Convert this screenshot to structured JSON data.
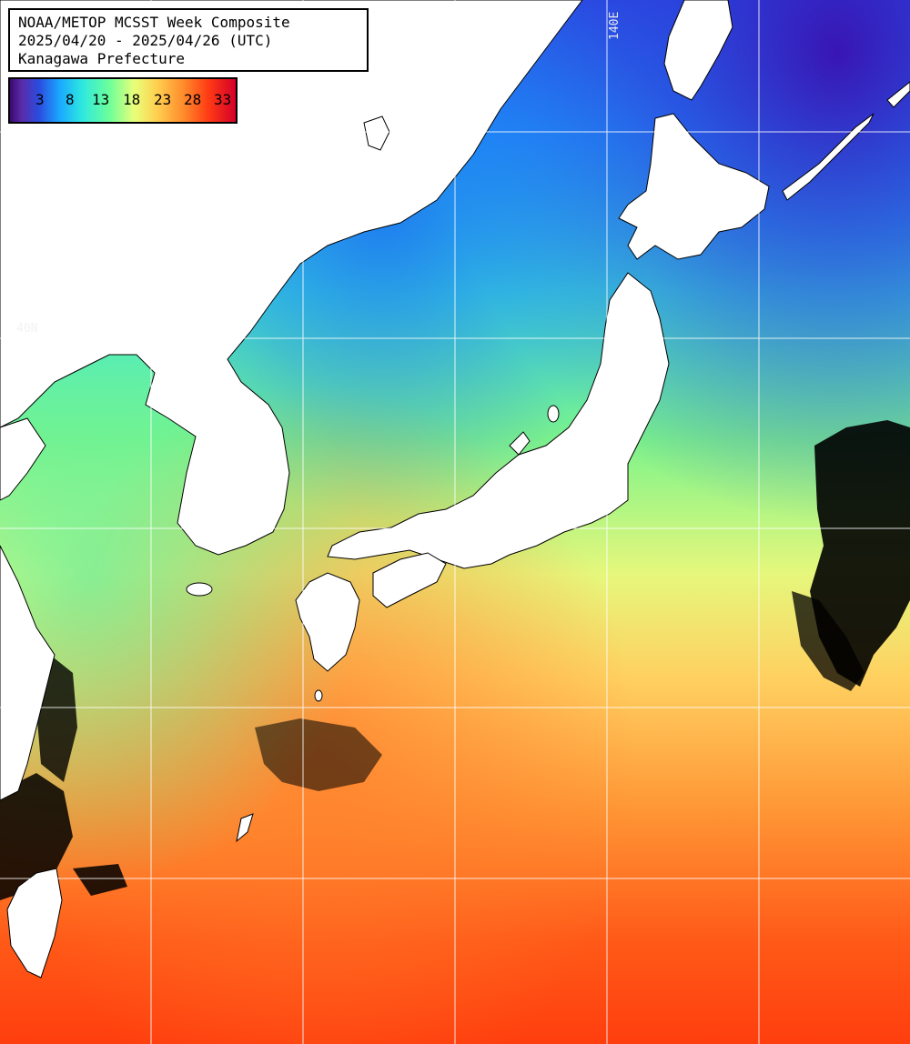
{
  "title": {
    "line1": "NOAA/METOP MCSST Week Composite",
    "line2": "2025/04/20 - 2025/04/26 (UTC)",
    "line3": "Kanagawa Prefecture"
  },
  "colorbar": {
    "ticks": [
      "3",
      "8",
      "13",
      "18",
      "23",
      "28",
      "33"
    ],
    "stops": [
      "#3a0a6e",
      "#2a4de0",
      "#1aa8ff",
      "#2ee8e0",
      "#6cff9a",
      "#e8ff7a",
      "#ffd050",
      "#ff8a2a",
      "#ff3a14",
      "#d4002a"
    ]
  },
  "grid": {
    "lon_label": "140E",
    "lat_label": "40N"
  },
  "colors": {
    "land": "#ffffff",
    "grid": "#ffffff",
    "cloud": "#000000",
    "north_sea": "#1f70e8",
    "south_sea": "#ff4a10"
  }
}
